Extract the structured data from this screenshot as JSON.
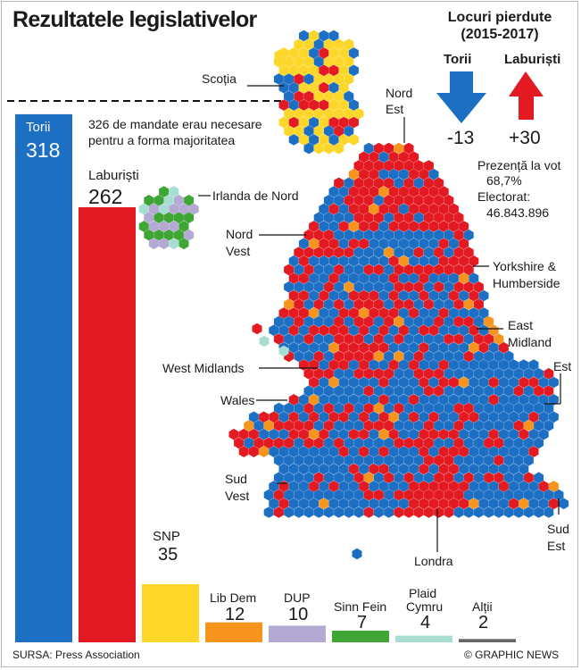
{
  "title": "Rezultatele legislativelor",
  "seats_lost": {
    "title_line1": "Locuri pierdute",
    "title_line2": "(2015-2017)",
    "conservatives": {
      "label": "Torii",
      "value": "-13",
      "color": "#1d6fc4"
    },
    "labour": {
      "label": "Laburiști",
      "value": "+30",
      "color": "#e31a22"
    }
  },
  "turnout": {
    "label": "Prezență la vot",
    "value": "68,7%"
  },
  "electorate": {
    "label": "Electorat:",
    "value": "46.843.896"
  },
  "majority_note": {
    "line1": "326 de mandate erau necesare",
    "line2": "pentru a forma majoritatea",
    "seats": 326
  },
  "regions": {
    "scotland": "Scoția",
    "north_east_1": "Nord",
    "north_east_2": "Est",
    "northern_ireland": "Irlanda de Nord",
    "north_west_1": "Nord",
    "north_west_2": "Vest",
    "yorkshire_1": "Yorkshire &",
    "yorkshire_2": "Humberside",
    "east_midlands_1": "East",
    "east_midlands_2": "Midland",
    "east": "Est",
    "west_midlands": "West Midlands",
    "wales": "Wales",
    "south_west_1": "Sud",
    "south_west_2": "Vest",
    "london": "Londra",
    "south_east_1": "Sud",
    "south_east_2": "Est"
  },
  "chart_data": {
    "type": "bar",
    "title": "Rezultatele legislativelor",
    "series": [
      {
        "name": "Torii",
        "value": 318,
        "color": "#1d6fc4"
      },
      {
        "name": "Laburiști",
        "value": 262,
        "color": "#e31a22"
      },
      {
        "name": "SNP",
        "value": 35,
        "color": "#fcd72a"
      },
      {
        "name": "Lib Dem",
        "value": 12,
        "color": "#f7941d"
      },
      {
        "name": "DUP",
        "value": 10,
        "color": "#b3a9d3"
      },
      {
        "name": "Sinn Fein",
        "value": 7,
        "color": "#3fa535"
      },
      {
        "name": "Plaid Cymru",
        "value": 4,
        "color": "#a8ddd2"
      },
      {
        "name": "Alții",
        "value": 2,
        "color": "#666666"
      }
    ],
    "majority_line": 326
  },
  "labels": {
    "torii": "Torii",
    "torii_value": "318",
    "labour": "Laburiști",
    "labour_value": "262",
    "snp": "SNP",
    "snp_value": "35",
    "libdem": "Lib Dem",
    "libdem_value": "12",
    "dup": "DUP",
    "dup_value": "10",
    "sinnfein": "Sinn Fein",
    "sinnfein_value": "7",
    "plaid_1": "Plaid",
    "plaid_2": "Cymru",
    "plaid_value": "4",
    "others": "Alții",
    "others_value": "2"
  },
  "source": "SURSA: Press Association",
  "credit": "© GRAPHIC NEWS"
}
